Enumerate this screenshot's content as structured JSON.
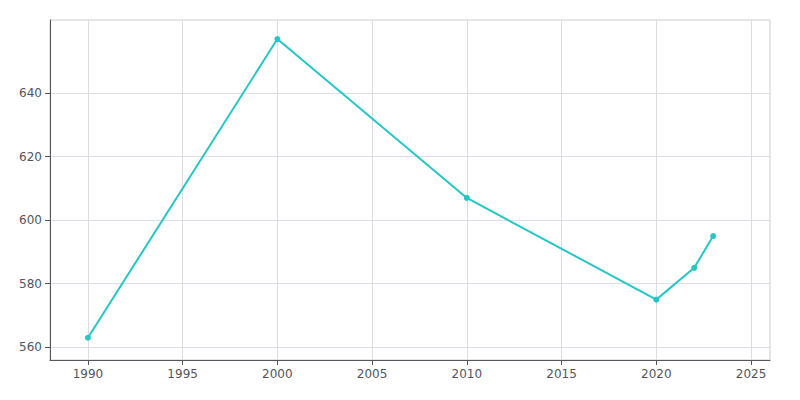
{
  "chart_data": {
    "type": "line",
    "x": [
      1990,
      2000,
      2010,
      2020,
      2022,
      2023
    ],
    "values": [
      563,
      657,
      607,
      575,
      585,
      595
    ],
    "color": "#26c6c6",
    "marker": "circle",
    "xlim": [
      1988,
      2026
    ],
    "ylim": [
      556,
      663
    ],
    "xticks": [
      1990,
      1995,
      2000,
      2005,
      2010,
      2015,
      2020,
      2025
    ],
    "yticks": [
      560,
      580,
      600,
      620,
      640
    ],
    "grid": true
  }
}
